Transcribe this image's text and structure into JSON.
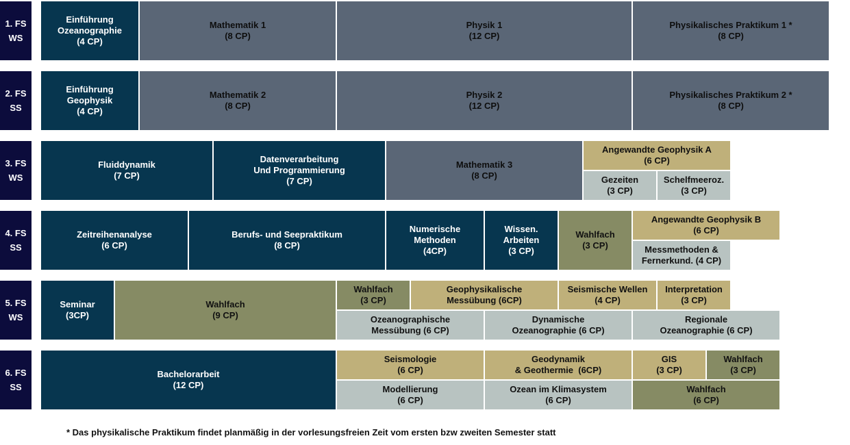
{
  "semesters": [
    {
      "num": "1. FS",
      "term": "WS"
    },
    {
      "num": "2. FS",
      "term": "SS"
    },
    {
      "num": "3. FS",
      "term": "WS"
    },
    {
      "num": "4. FS",
      "term": "SS"
    },
    {
      "num": "5. FS",
      "term": "WS"
    },
    {
      "num": "6. FS",
      "term": "SS"
    }
  ],
  "colors": {
    "semester_label": "#0c0c3c",
    "teal": "#07364f",
    "slate": "#5a6676",
    "tan": "#bfb07a",
    "light": "#b8c3c1",
    "olive": "#868b64"
  },
  "modules": {
    "s1": [
      {
        "lines": [
          "Einführung",
          "Ozeanographie",
          "(4 CP)"
        ]
      },
      {
        "lines": [
          "Mathematik 1",
          "(8 CP)"
        ]
      },
      {
        "lines": [
          "Physik 1",
          "(12 CP)"
        ]
      },
      {
        "lines": [
          "Physikalisches Praktikum 1 *",
          "(8 CP)"
        ]
      }
    ],
    "s2": [
      {
        "lines": [
          "Einführung",
          "Geophysik",
          "(4 CP)"
        ]
      },
      {
        "lines": [
          "Mathematik 2",
          "(8 CP)"
        ]
      },
      {
        "lines": [
          "Physik 2",
          "(12 CP)"
        ]
      },
      {
        "lines": [
          "Physikalisches Praktikum 2 *",
          "(8 CP)"
        ]
      }
    ],
    "s3": [
      {
        "lines": [
          "Fluiddynamik",
          "(7 CP)"
        ]
      },
      {
        "lines": [
          "Datenverarbeitung",
          "Und Programmierung",
          "(7 CP)"
        ]
      },
      {
        "lines": [
          "Mathematik 3",
          "(8 CP)"
        ]
      },
      {
        "lines": [
          "Angewandte Geophysik A",
          "(6 CP)"
        ]
      },
      {
        "lines": [
          "Gezeiten",
          "(3 CP)"
        ]
      },
      {
        "lines": [
          "Schelfmeeroz.",
          "(3 CP)"
        ]
      }
    ],
    "s4": [
      {
        "lines": [
          "Zeitreihenanalyse",
          "(6 CP)"
        ]
      },
      {
        "lines": [
          "Berufs- und Seepraktikum",
          "(8 CP)"
        ]
      },
      {
        "lines": [
          "Numerische",
          "Methoden",
          "(4CP)"
        ]
      },
      {
        "lines": [
          "Wissen.",
          "Arbeiten",
          "(3 CP)"
        ]
      },
      {
        "lines": [
          "Wahlfach",
          "(3 CP)"
        ]
      },
      {
        "lines": [
          "Angewandte Geophysik B",
          "(6 CP)"
        ]
      },
      {
        "lines": [
          "Messmethoden &",
          "Fernerkund. (4 CP)"
        ]
      }
    ],
    "s5": [
      {
        "lines": [
          "Seminar",
          "(3CP)"
        ]
      },
      {
        "lines": [
          "Wahlfach",
          "(9 CP)"
        ]
      },
      {
        "lines": [
          "Wahlfach",
          "(3 CP)"
        ]
      },
      {
        "lines": [
          "Geophysikalische",
          "Messübung (6CP)"
        ]
      },
      {
        "lines": [
          "Seismische Wellen",
          "(4 CP)"
        ]
      },
      {
        "lines": [
          "Interpretation",
          "(3 CP)"
        ]
      },
      {
        "lines": [
          "Ozeanographische",
          "Messübung (6 CP)"
        ]
      },
      {
        "lines": [
          "Dynamische",
          "Ozeanographie (6 CP)"
        ]
      },
      {
        "lines": [
          "Regionale",
          "Ozeanographie (6 CP)"
        ]
      }
    ],
    "s6": [
      {
        "lines": [
          "Bachelorarbeit",
          "(12 CP)"
        ]
      },
      {
        "lines": [
          "Seismologie",
          "(6 CP)"
        ]
      },
      {
        "lines": [
          "Geodynamik",
          "& Geothermie  (6CP)"
        ]
      },
      {
        "lines": [
          "GIS",
          "(3 CP)"
        ]
      },
      {
        "lines": [
          "Wahlfach",
          "(3 CP)"
        ]
      },
      {
        "lines": [
          "Modellierung",
          "(6 CP)"
        ]
      },
      {
        "lines": [
          "Ozean im Klimasystem",
          "(6 CP)"
        ]
      },
      {
        "lines": [
          "Wahlfach",
          "(6 CP)"
        ]
      }
    ]
  },
  "footnote": "* Das physikalische Praktikum findet planmäßig in der vorlesungsfreien Zeit vom ersten bzw zweiten Semester statt"
}
